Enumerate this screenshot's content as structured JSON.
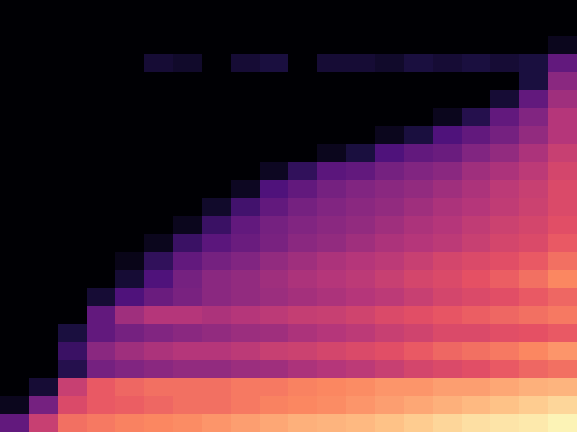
{
  "chart_data": {
    "type": "heatmap",
    "xlim": [
      0,
      20
    ],
    "ylim": [
      0,
      24
    ],
    "zlim": [
      0,
      1
    ],
    "tick_labels": false,
    "cells": [
      [
        0,
        0,
        0,
        0,
        0,
        0,
        0,
        0,
        0,
        0,
        0,
        0,
        0,
        0,
        0,
        0,
        0,
        0,
        0,
        0
      ],
      [
        0,
        0,
        0,
        0,
        0,
        0,
        0,
        0,
        0,
        0,
        0,
        0,
        0,
        0,
        0,
        0,
        0,
        0,
        0,
        0
      ],
      [
        0,
        0,
        0,
        0,
        0,
        0,
        0,
        0,
        0,
        0,
        0,
        0,
        0,
        0,
        0,
        0,
        0,
        0,
        0,
        0.05
      ],
      [
        0,
        0,
        0,
        0,
        0,
        0.1,
        0.08,
        0,
        0.1,
        0.12,
        0,
        0.1,
        0.1,
        0.08,
        0.12,
        0.1,
        0.12,
        0.1,
        0.12,
        0.3
      ],
      [
        0,
        0,
        0,
        0,
        0,
        0,
        0,
        0,
        0,
        0,
        0,
        0,
        0,
        0,
        0,
        0,
        0,
        0,
        0.12,
        0.4
      ],
      [
        0,
        0,
        0,
        0,
        0,
        0,
        0,
        0,
        0,
        0,
        0,
        0,
        0,
        0,
        0,
        0,
        0,
        0.1,
        0.3,
        0.45
      ],
      [
        0,
        0,
        0,
        0,
        0,
        0,
        0,
        0,
        0,
        0,
        0,
        0,
        0,
        0,
        0,
        0.05,
        0.15,
        0.3,
        0.38,
        0.5
      ],
      [
        0,
        0,
        0,
        0,
        0,
        0,
        0,
        0,
        0,
        0,
        0,
        0,
        0,
        0.05,
        0.12,
        0.25,
        0.3,
        0.35,
        0.42,
        0.5
      ],
      [
        0,
        0,
        0,
        0,
        0,
        0,
        0,
        0,
        0,
        0,
        0,
        0.05,
        0.12,
        0.25,
        0.3,
        0.32,
        0.38,
        0.42,
        0.48,
        0.55
      ],
      [
        0,
        0,
        0,
        0,
        0,
        0,
        0,
        0,
        0,
        0.06,
        0.18,
        0.28,
        0.3,
        0.35,
        0.38,
        0.4,
        0.45,
        0.48,
        0.52,
        0.58
      ],
      [
        0,
        0,
        0,
        0,
        0,
        0,
        0,
        0,
        0.06,
        0.25,
        0.3,
        0.35,
        0.38,
        0.4,
        0.42,
        0.45,
        0.48,
        0.52,
        0.55,
        0.6
      ],
      [
        0,
        0,
        0,
        0,
        0,
        0,
        0,
        0.08,
        0.22,
        0.3,
        0.35,
        0.38,
        0.4,
        0.42,
        0.45,
        0.48,
        0.5,
        0.53,
        0.56,
        0.6
      ],
      [
        0,
        0,
        0,
        0,
        0,
        0,
        0.05,
        0.2,
        0.3,
        0.35,
        0.38,
        0.4,
        0.42,
        0.45,
        0.48,
        0.5,
        0.53,
        0.56,
        0.58,
        0.62
      ],
      [
        0,
        0,
        0,
        0,
        0,
        0.05,
        0.2,
        0.28,
        0.32,
        0.36,
        0.4,
        0.42,
        0.45,
        0.48,
        0.5,
        0.52,
        0.55,
        0.58,
        0.6,
        0.65
      ],
      [
        0,
        0,
        0,
        0,
        0.04,
        0.18,
        0.3,
        0.35,
        0.38,
        0.42,
        0.45,
        0.48,
        0.5,
        0.52,
        0.55,
        0.58,
        0.6,
        0.62,
        0.65,
        0.7
      ],
      [
        0,
        0,
        0,
        0,
        0.1,
        0.25,
        0.35,
        0.4,
        0.42,
        0.45,
        0.48,
        0.5,
        0.52,
        0.55,
        0.58,
        0.6,
        0.63,
        0.66,
        0.7,
        0.75
      ],
      [
        0,
        0,
        0,
        0.1,
        0.25,
        0.32,
        0.36,
        0.4,
        0.42,
        0.44,
        0.46,
        0.48,
        0.5,
        0.52,
        0.55,
        0.58,
        0.6,
        0.62,
        0.65,
        0.68
      ],
      [
        0,
        0,
        0,
        0.3,
        0.45,
        0.5,
        0.5,
        0.48,
        0.5,
        0.52,
        0.54,
        0.55,
        0.57,
        0.6,
        0.62,
        0.64,
        0.66,
        0.68,
        0.7,
        0.72
      ],
      [
        0,
        0,
        0.12,
        0.3,
        0.35,
        0.38,
        0.4,
        0.42,
        0.44,
        0.45,
        0.48,
        0.5,
        0.52,
        0.55,
        0.57,
        0.6,
        0.6,
        0.62,
        0.63,
        0.65
      ],
      [
        0,
        0,
        0.2,
        0.4,
        0.45,
        0.48,
        0.5,
        0.5,
        0.52,
        0.55,
        0.56,
        0.58,
        0.6,
        0.62,
        0.65,
        0.68,
        0.7,
        0.72,
        0.75,
        0.78
      ],
      [
        0,
        0,
        0.15,
        0.35,
        0.38,
        0.4,
        0.42,
        0.42,
        0.44,
        0.45,
        0.48,
        0.5,
        0.52,
        0.55,
        0.58,
        0.6,
        0.62,
        0.65,
        0.68,
        0.7
      ],
      [
        0,
        0.1,
        0.55,
        0.65,
        0.68,
        0.7,
        0.7,
        0.7,
        0.72,
        0.72,
        0.74,
        0.75,
        0.76,
        0.78,
        0.78,
        0.8,
        0.8,
        0.82,
        0.84,
        0.85
      ],
      [
        0.05,
        0.35,
        0.6,
        0.65,
        0.66,
        0.68,
        0.7,
        0.7,
        0.72,
        0.74,
        0.75,
        0.76,
        0.78,
        0.8,
        0.82,
        0.84,
        0.86,
        0.88,
        0.9,
        0.92
      ],
      [
        0.3,
        0.55,
        0.7,
        0.72,
        0.74,
        0.75,
        0.76,
        0.78,
        0.8,
        0.82,
        0.84,
        0.85,
        0.86,
        0.88,
        0.9,
        0.92,
        0.94,
        0.95,
        0.96,
        0.98
      ]
    ]
  }
}
